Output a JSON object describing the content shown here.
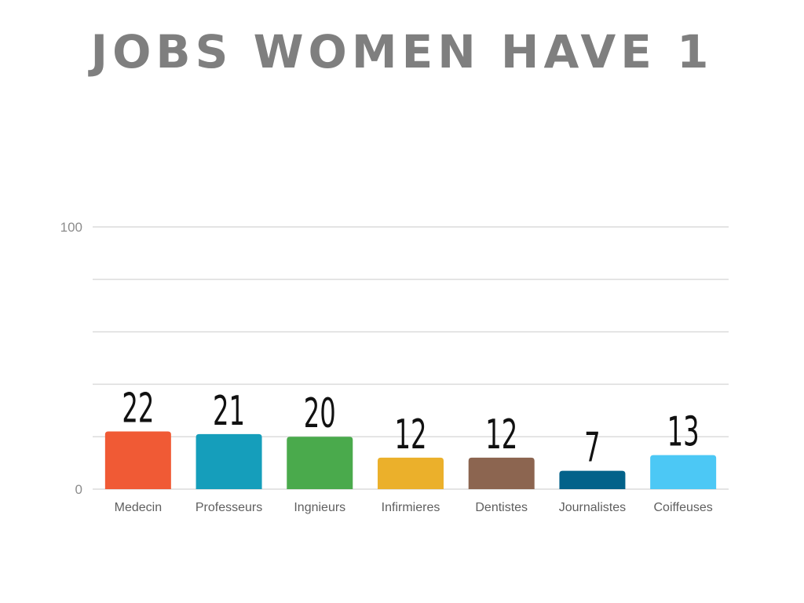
{
  "title": "JOBS WOMEN HAVE 1",
  "chart_data": {
    "type": "bar",
    "title": "JOBS WOMEN HAVE 1",
    "categories": [
      "Medecin",
      "Professeurs",
      "Ingnieurs",
      "Infirmieres",
      "Dentistes",
      "Journalistes",
      "Coiffeuses"
    ],
    "values": [
      22,
      21,
      20,
      12,
      12,
      7,
      13
    ],
    "colors": [
      "#f05a35",
      "#159ebb",
      "#4aaa4c",
      "#ebb02b",
      "#8c6550",
      "#03628a",
      "#4cc8f5"
    ],
    "bar_heights_values": [
      22,
      21,
      20,
      12,
      12,
      7,
      13
    ],
    "ylim": [
      0,
      100
    ],
    "yticks": [
      0,
      100
    ],
    "ytick_labels": [
      "0",
      "100"
    ],
    "gridlines": [
      0,
      20,
      40,
      60,
      80,
      100
    ],
    "grid": true,
    "legend": "none",
    "xlabel": "",
    "ylabel": ""
  }
}
